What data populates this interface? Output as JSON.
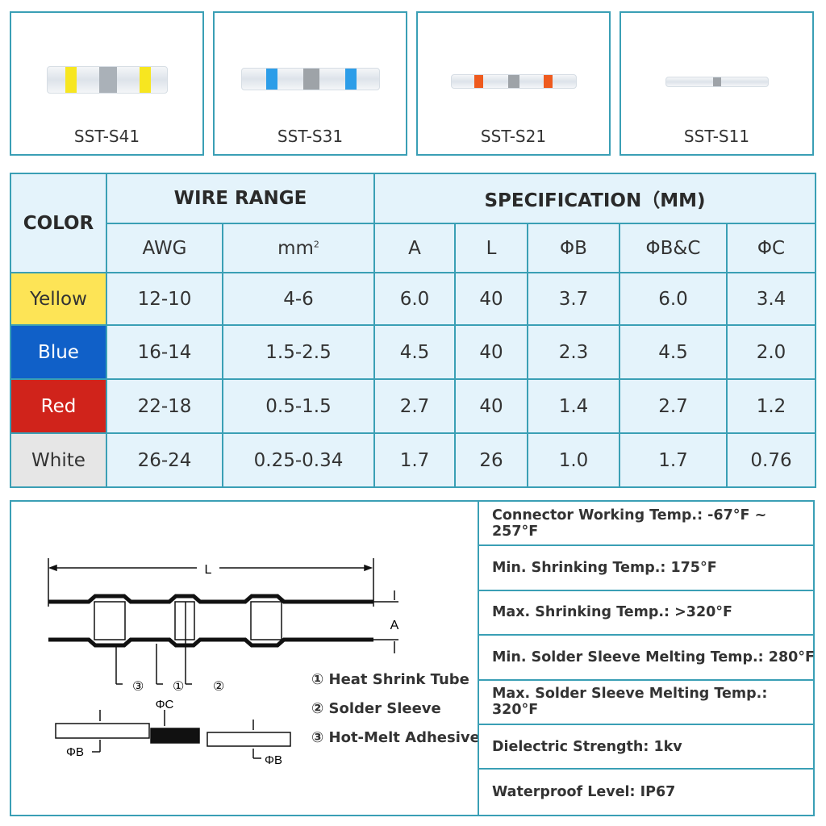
{
  "products": [
    {
      "model": "SST-S41",
      "band_color": "#f7e620"
    },
    {
      "model": "SST-S31",
      "band_color": "#2c9de8"
    },
    {
      "model": "SST-S21",
      "band_color": "#ee5a1e"
    },
    {
      "model": "SST-S11",
      "band_color": "#ffffff"
    }
  ],
  "table": {
    "color_header": "COLOR",
    "wire_range_header": "WIRE RANGE",
    "spec_header": "SPECIFICATION（MM)",
    "columns": [
      "AWG",
      "mm",
      "A",
      "L",
      "ΦB",
      "ΦB&C",
      "ΦC"
    ],
    "mm_sup": "2",
    "rows": [
      {
        "color": "Yellow",
        "swatch": "#fde456",
        "text_color": "#333",
        "values": [
          "12-10",
          "4-6",
          "6.0",
          "40",
          "3.7",
          "6.0",
          "3.4"
        ]
      },
      {
        "color": "Blue",
        "swatch": "#1060c8",
        "text_color": "#fff",
        "values": [
          "16-14",
          "1.5-2.5",
          "4.5",
          "40",
          "2.3",
          "4.5",
          "2.0"
        ]
      },
      {
        "color": "Red",
        "swatch": "#d0231b",
        "text_color": "#fff",
        "values": [
          "22-18",
          "0.5-1.5",
          "2.7",
          "40",
          "1.4",
          "2.7",
          "1.2"
        ]
      },
      {
        "color": "White",
        "swatch": "#e6e6e6",
        "text_color": "#333",
        "values": [
          "26-24",
          "0.25-0.34",
          "1.7",
          "26",
          "1.0",
          "1.7",
          "0.76"
        ]
      }
    ]
  },
  "diagram": {
    "label_L": "L",
    "label_A": "A",
    "label_phiC": "ΦC",
    "label_phiB": "ΦB",
    "callouts": [
      "③",
      "①",
      "②"
    ],
    "legend": [
      "① Heat Shrink Tube",
      "② Solder Sleeve",
      "③ Hot-Melt Adhesive"
    ]
  },
  "specs": [
    "Connector Working Temp.: -67°F ~ 257°F",
    "Min. Shrinking Temp.:  175°F",
    "Max. Shrinking Temp.:  >320°F",
    "Min. Solder Sleeve Melting Temp.:  280°F",
    "Max. Solder Sleeve Melting Temp.:  320°F",
    "Dielectric Strength: 1kv",
    "Waterproof Level: IP67"
  ],
  "accent": "#3a9fb5"
}
